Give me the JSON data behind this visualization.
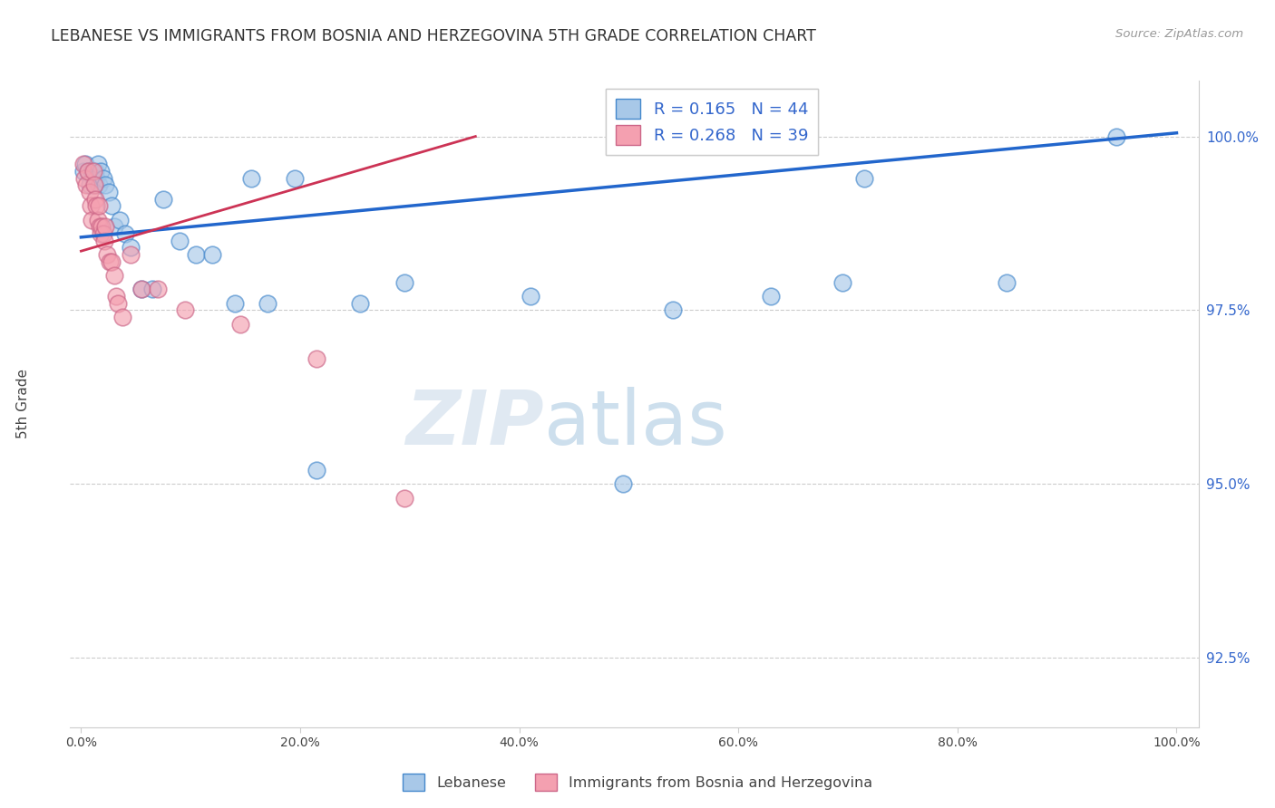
{
  "title": "LEBANESE VS IMMIGRANTS FROM BOSNIA AND HERZEGOVINA 5TH GRADE CORRELATION CHART",
  "source": "Source: ZipAtlas.com",
  "ylabel": "5th Grade",
  "legend_blue_label": "Lebanese",
  "legend_pink_label": "Immigrants from Bosnia and Herzegovina",
  "blue_R": 0.165,
  "blue_N": 44,
  "pink_R": 0.268,
  "pink_N": 39,
  "blue_color": "#a8c8e8",
  "blue_edge": "#4488cc",
  "pink_color": "#f4a0b0",
  "pink_edge": "#cc6688",
  "trendline_blue": "#2266cc",
  "trendline_pink": "#cc3355",
  "ylim_min": 91.5,
  "ylim_max": 100.8,
  "xlim_min": -1.0,
  "xlim_max": 102.0,
  "yticks": [
    92.5,
    95.0,
    97.5,
    100.0
  ],
  "xticks": [
    0.0,
    20.0,
    40.0,
    60.0,
    80.0,
    100.0
  ],
  "blue_x": [
    0.2,
    0.4,
    0.6,
    0.8,
    1.0,
    1.1,
    1.2,
    1.3,
    1.4,
    1.5,
    1.6,
    1.8,
    2.0,
    2.2,
    2.5,
    2.8,
    3.0,
    3.5,
    4.0,
    4.5,
    5.5,
    6.5,
    7.5,
    9.0,
    10.5,
    12.0,
    14.0,
    15.5,
    17.0,
    19.5,
    21.5,
    25.5,
    29.5,
    41.0,
    49.5,
    54.0,
    63.0,
    69.5,
    71.5,
    84.5,
    94.5
  ],
  "blue_y": [
    99.5,
    99.6,
    99.5,
    99.3,
    99.5,
    99.4,
    99.3,
    99.5,
    99.4,
    99.6,
    99.3,
    99.5,
    99.4,
    99.3,
    99.2,
    99.0,
    98.7,
    98.8,
    98.6,
    98.4,
    97.8,
    97.8,
    99.1,
    98.5,
    98.3,
    98.3,
    97.6,
    99.4,
    97.6,
    99.4,
    95.2,
    97.6,
    97.9,
    97.7,
    95.0,
    97.5,
    97.7,
    97.9,
    99.4,
    97.9,
    100.0
  ],
  "pink_x": [
    0.2,
    0.3,
    0.5,
    0.6,
    0.8,
    0.9,
    1.0,
    1.1,
    1.2,
    1.3,
    1.4,
    1.5,
    1.6,
    1.7,
    1.8,
    1.9,
    2.0,
    2.1,
    2.2,
    2.4,
    2.6,
    2.8,
    3.0,
    3.2,
    3.4,
    3.8,
    4.5,
    5.5,
    7.0,
    9.5,
    14.5,
    21.5,
    29.5
  ],
  "pink_y": [
    99.6,
    99.4,
    99.3,
    99.5,
    99.2,
    99.0,
    98.8,
    99.5,
    99.3,
    99.1,
    99.0,
    98.8,
    99.0,
    98.7,
    98.6,
    98.7,
    98.6,
    98.5,
    98.7,
    98.3,
    98.2,
    98.2,
    98.0,
    97.7,
    97.6,
    97.4,
    98.3,
    97.8,
    97.8,
    97.5,
    97.3,
    96.8,
    94.8
  ],
  "blue_trend_x0": 0.0,
  "blue_trend_x1": 100.0,
  "blue_trend_y0": 98.55,
  "blue_trend_y1": 100.05,
  "pink_trend_x0": 0.0,
  "pink_trend_x1": 36.0,
  "pink_trend_y0": 98.35,
  "pink_trend_y1": 100.0
}
